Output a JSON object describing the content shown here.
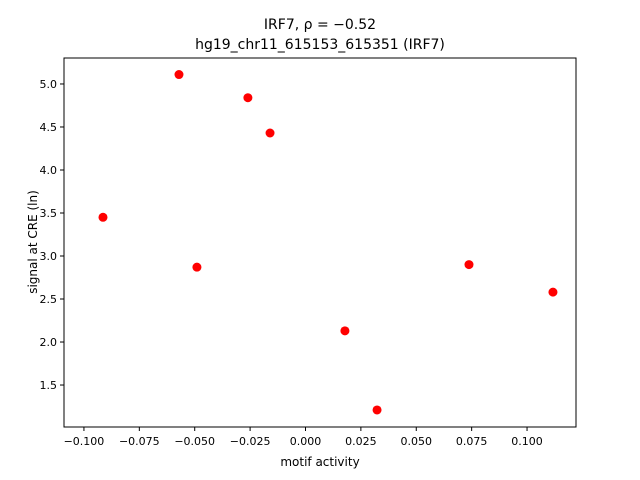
{
  "chart_data": {
    "type": "scatter",
    "title": "IRF7, ρ = −0.52",
    "subtitle": "hg19_chr11_615153_615351 (IRF7)",
    "x_label": "motif activity",
    "y_label": "signal at CRE (ln)",
    "color": "#ff0000",
    "x": [
      -0.0914,
      -0.0571,
      -0.026,
      -0.016,
      -0.049,
      0.0178,
      0.0323,
      0.0738,
      0.1117
    ],
    "values": [
      3.45,
      5.11,
      4.84,
      4.43,
      2.87,
      2.13,
      1.21,
      2.9,
      2.58
    ],
    "xlim": [
      -0.109,
      0.1221
    ],
    "ylim": [
      1.012,
      5.302
    ],
    "xticks": [
      {
        "value": -0.1,
        "label": "−0.100"
      },
      {
        "value": -0.075,
        "label": "−0.075"
      },
      {
        "value": -0.05,
        "label": "−0.050"
      },
      {
        "value": -0.025,
        "label": "−0.025"
      },
      {
        "value": 0,
        "label": "0.000"
      },
      {
        "value": 0.025,
        "label": "0.025"
      },
      {
        "value": 0.05,
        "label": "0.050"
      },
      {
        "value": 0.075,
        "label": "0.075"
      },
      {
        "value": 0.1,
        "label": "0.100"
      }
    ],
    "yticks": [
      {
        "value": 1.5,
        "label": "1.5"
      },
      {
        "value": 2,
        "label": "2.0"
      },
      {
        "value": 2.5,
        "label": "2.5"
      },
      {
        "value": 3,
        "label": "3.0"
      },
      {
        "value": 3.5,
        "label": "3.5"
      },
      {
        "value": 4,
        "label": "4.0"
      },
      {
        "value": 4.5,
        "label": "4.5"
      },
      {
        "value": 5,
        "label": "5.0"
      }
    ],
    "grid": false
  }
}
